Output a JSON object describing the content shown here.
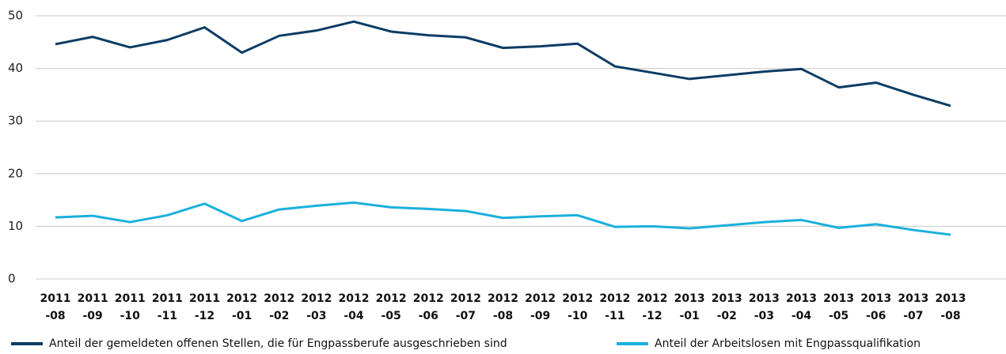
{
  "chart_data": {
    "type": "line",
    "categories": [
      "2011 -08",
      "2011 -09",
      "2011 -10",
      "2011 -11",
      "2011 -12",
      "2012 -01",
      "2012 -02",
      "2012 -03",
      "2012 -04",
      "2012 -05",
      "2012 -06",
      "2012 -07",
      "2012 -08",
      "2012 -09",
      "2012 -10",
      "2012 -11",
      "2012 -12",
      "2013 -01",
      "2013 -02",
      "2013 -03",
      "2013 -04",
      "2013 -05",
      "2013 -06",
      "2013 -07",
      "2013 -08"
    ],
    "series": [
      {
        "name": "Anteil der gemeldeten offenen Stellen, die für Engpassberufe ausgeschrieben sind",
        "color": "#0b3c64",
        "values": [
          44.6,
          46.0,
          44.0,
          45.4,
          47.8,
          43.0,
          46.2,
          47.2,
          48.9,
          47.0,
          46.3,
          45.9,
          43.9,
          44.2,
          44.7,
          40.4,
          39.2,
          38.0,
          38.7,
          39.4,
          39.9,
          36.4,
          37.3,
          35.0,
          32.9
        ]
      },
      {
        "name": "Anteil der Arbeitslosen mit Engpassqualifikation",
        "color": "#1ab0dc",
        "values": [
          11.7,
          12.0,
          10.8,
          12.1,
          14.3,
          11.0,
          13.2,
          13.9,
          14.5,
          13.6,
          13.3,
          12.9,
          11.6,
          11.9,
          12.1,
          9.9,
          10.0,
          9.6,
          10.2,
          10.8,
          11.2,
          9.7,
          10.4,
          9.3,
          8.4
        ]
      }
    ],
    "ylim": [
      0,
      50
    ],
    "yticks": [
      0,
      10,
      20,
      30,
      40,
      50
    ],
    "grid": true
  }
}
